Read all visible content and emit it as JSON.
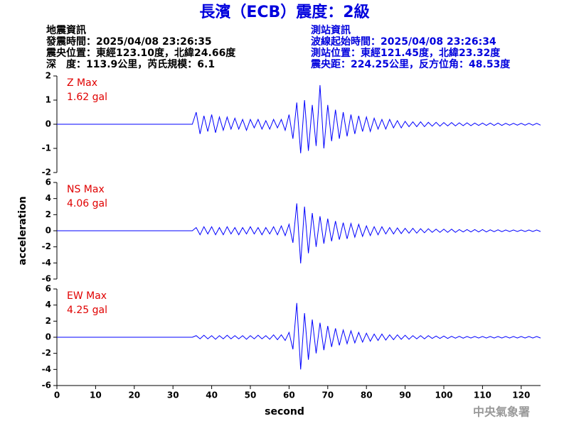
{
  "header": {
    "title": "長濱（ECB）震度：2級",
    "left": [
      "地震資訊",
      "發震時間：2025/04/08 23:26:35",
      "震央位置：東經123.10度，北緯24.66度",
      "深　度：113.9公里，芮氏規模：6.1"
    ],
    "right": [
      "測站資訊",
      "波線起始時間：2025/04/08 23:26:34",
      "測站位置：東經121.45度，北緯23.32度",
      "震央距：224.25公里，反方位角：48.53度"
    ]
  },
  "footer": "中央氣象署",
  "chart_data": [
    {
      "type": "line",
      "label": "Z Max",
      "max_label": "1.62 gal",
      "color": "#0000ff",
      "label_color": "#e00000",
      "xlim": [
        0,
        125
      ],
      "ylim": [
        -2,
        2
      ],
      "yticks": [
        -2,
        -1,
        0,
        1,
        2
      ],
      "x": [
        0,
        35,
        36,
        37,
        38,
        39,
        40,
        41,
        42,
        43,
        44,
        45,
        46,
        47,
        48,
        49,
        50,
        51,
        52,
        53,
        54,
        55,
        56,
        57,
        58,
        59,
        60,
        61,
        62,
        63,
        64,
        65,
        66,
        67,
        68,
        69,
        70,
        71,
        72,
        73,
        74,
        75,
        76,
        77,
        78,
        79,
        80,
        81,
        82,
        83,
        84,
        85,
        86,
        87,
        88,
        89,
        90,
        91,
        92,
        93,
        94,
        95,
        96,
        97,
        98,
        99,
        100,
        101,
        102,
        103,
        104,
        105,
        106,
        107,
        108,
        109,
        110,
        111,
        112,
        113,
        114,
        115,
        116,
        117,
        118,
        119,
        120,
        121,
        122,
        123,
        124,
        125
      ],
      "values": [
        0,
        0,
        0.5,
        -0.4,
        0.35,
        -0.3,
        0.4,
        -0.35,
        0.3,
        -0.25,
        0.3,
        -0.2,
        0.25,
        -0.2,
        0.2,
        -0.25,
        0.2,
        -0.15,
        0.2,
        -0.2,
        0.15,
        -0.2,
        0.2,
        -0.15,
        0.2,
        -0.25,
        0.4,
        -0.6,
        0.9,
        -1.2,
        1.0,
        -1.1,
        0.8,
        -0.9,
        1.62,
        -1.0,
        0.8,
        -0.7,
        0.6,
        -0.6,
        0.5,
        -0.5,
        0.4,
        -0.4,
        0.35,
        -0.3,
        0.3,
        -0.3,
        0.25,
        -0.2,
        0.2,
        -0.2,
        0.2,
        -0.15,
        0.15,
        -0.15,
        0.12,
        -0.1,
        0.1,
        -0.1,
        0.1,
        -0.1,
        0.08,
        -0.08,
        0.08,
        -0.08,
        0.07,
        -0.07,
        0.07,
        -0.07,
        0.06,
        -0.06,
        0.06,
        -0.06,
        0.05,
        -0.05,
        0.05,
        -0.05,
        0.05,
        -0.05,
        0.05,
        -0.05,
        0.04,
        -0.04,
        0.04,
        -0.04,
        0.04,
        -0.04,
        0.04,
        -0.04,
        0.04,
        -0.04
      ]
    },
    {
      "type": "line",
      "label": "NS Max",
      "max_label": "4.06 gal",
      "color": "#0000ff",
      "label_color": "#e00000",
      "ylabel": "acceleration",
      "xlim": [
        0,
        125
      ],
      "ylim": [
        -6,
        6
      ],
      "yticks": [
        -6,
        -4,
        -2,
        0,
        2,
        4,
        6
      ],
      "x": [
        0,
        35,
        36,
        37,
        38,
        39,
        40,
        41,
        42,
        43,
        44,
        45,
        46,
        47,
        48,
        49,
        50,
        51,
        52,
        53,
        54,
        55,
        56,
        57,
        58,
        59,
        60,
        61,
        62,
        63,
        64,
        65,
        66,
        67,
        68,
        69,
        70,
        71,
        72,
        73,
        74,
        75,
        76,
        77,
        78,
        79,
        80,
        81,
        82,
        83,
        84,
        85,
        86,
        87,
        88,
        89,
        90,
        91,
        92,
        93,
        94,
        95,
        96,
        97,
        98,
        99,
        100,
        101,
        102,
        103,
        104,
        105,
        106,
        107,
        108,
        109,
        110,
        111,
        112,
        113,
        114,
        115,
        116,
        117,
        118,
        119,
        120,
        121,
        122,
        123,
        124,
        125
      ],
      "values": [
        0,
        0,
        0.4,
        -0.5,
        0.5,
        -0.4,
        0.5,
        -0.5,
        0.4,
        -0.5,
        0.5,
        -0.4,
        0.4,
        -0.5,
        0.4,
        -0.4,
        0.5,
        -0.4,
        0.4,
        -0.5,
        0.4,
        -0.4,
        0.5,
        -0.5,
        0.6,
        -0.6,
        0.8,
        -1.5,
        3.4,
        -4.06,
        3.0,
        -2.8,
        2.2,
        -2.0,
        1.8,
        -1.6,
        1.5,
        -1.3,
        1.2,
        -1.1,
        1.0,
        -1.0,
        0.9,
        -0.8,
        0.8,
        -0.7,
        0.6,
        -0.6,
        0.5,
        -0.5,
        0.5,
        -0.4,
        0.4,
        -0.4,
        0.35,
        -0.35,
        0.3,
        -0.3,
        0.3,
        -0.3,
        0.25,
        -0.25,
        0.25,
        -0.2,
        0.2,
        -0.2,
        0.2,
        -0.2,
        0.2,
        -0.2,
        0.15,
        -0.15,
        0.15,
        -0.15,
        0.15,
        -0.15,
        0.15,
        -0.15,
        0.12,
        -0.12,
        0.12,
        -0.12,
        0.1,
        -0.1,
        0.1,
        -0.1,
        0.1,
        -0.1,
        0.1,
        -0.1,
        0.1,
        -0.1
      ]
    },
    {
      "type": "line",
      "label": "EW Max",
      "max_label": "4.25 gal",
      "color": "#0000ff",
      "label_color": "#e00000",
      "xlabel": "second",
      "xlim": [
        0,
        125
      ],
      "xticks": [
        0,
        10,
        20,
        30,
        40,
        50,
        60,
        70,
        80,
        90,
        100,
        110,
        120
      ],
      "ylim": [
        -6,
        6
      ],
      "yticks": [
        -6,
        -4,
        -2,
        0,
        2,
        4,
        6
      ],
      "x": [
        0,
        35,
        36,
        37,
        38,
        39,
        40,
        41,
        42,
        43,
        44,
        45,
        46,
        47,
        48,
        49,
        50,
        51,
        52,
        53,
        54,
        55,
        56,
        57,
        58,
        59,
        60,
        61,
        62,
        63,
        64,
        65,
        66,
        67,
        68,
        69,
        70,
        71,
        72,
        73,
        74,
        75,
        76,
        77,
        78,
        79,
        80,
        81,
        82,
        83,
        84,
        85,
        86,
        87,
        88,
        89,
        90,
        91,
        92,
        93,
        94,
        95,
        96,
        97,
        98,
        99,
        100,
        101,
        102,
        103,
        104,
        105,
        106,
        107,
        108,
        109,
        110,
        111,
        112,
        113,
        114,
        115,
        116,
        117,
        118,
        119,
        120,
        121,
        122,
        123,
        124,
        125
      ],
      "values": [
        0,
        0,
        0.2,
        -0.2,
        0.25,
        -0.2,
        0.2,
        -0.25,
        0.2,
        -0.2,
        0.25,
        -0.2,
        0.2,
        -0.2,
        0.2,
        -0.25,
        0.2,
        -0.2,
        0.25,
        -0.2,
        0.2,
        -0.25,
        0.3,
        -0.3,
        0.3,
        -0.4,
        0.6,
        -1.5,
        4.25,
        -4.0,
        3.0,
        -2.8,
        2.2,
        -2.0,
        1.8,
        -1.6,
        1.4,
        -1.2,
        1.1,
        -1.0,
        0.9,
        -0.8,
        0.8,
        -0.7,
        0.6,
        -0.6,
        0.5,
        -0.5,
        0.4,
        -0.4,
        0.4,
        -0.35,
        0.3,
        -0.3,
        0.3,
        -0.25,
        0.25,
        -0.25,
        0.2,
        -0.2,
        0.2,
        -0.2,
        0.2,
        -0.15,
        0.15,
        -0.15,
        0.15,
        -0.15,
        0.12,
        -0.12,
        0.12,
        -0.12,
        0.1,
        -0.1,
        0.1,
        -0.1,
        0.1,
        -0.1,
        0.1,
        -0.1,
        0.1,
        -0.1,
        0.1,
        -0.1,
        0.1,
        -0.1,
        0.1,
        -0.1,
        0.1,
        -0.1,
        0.1,
        -0.1
      ]
    }
  ]
}
